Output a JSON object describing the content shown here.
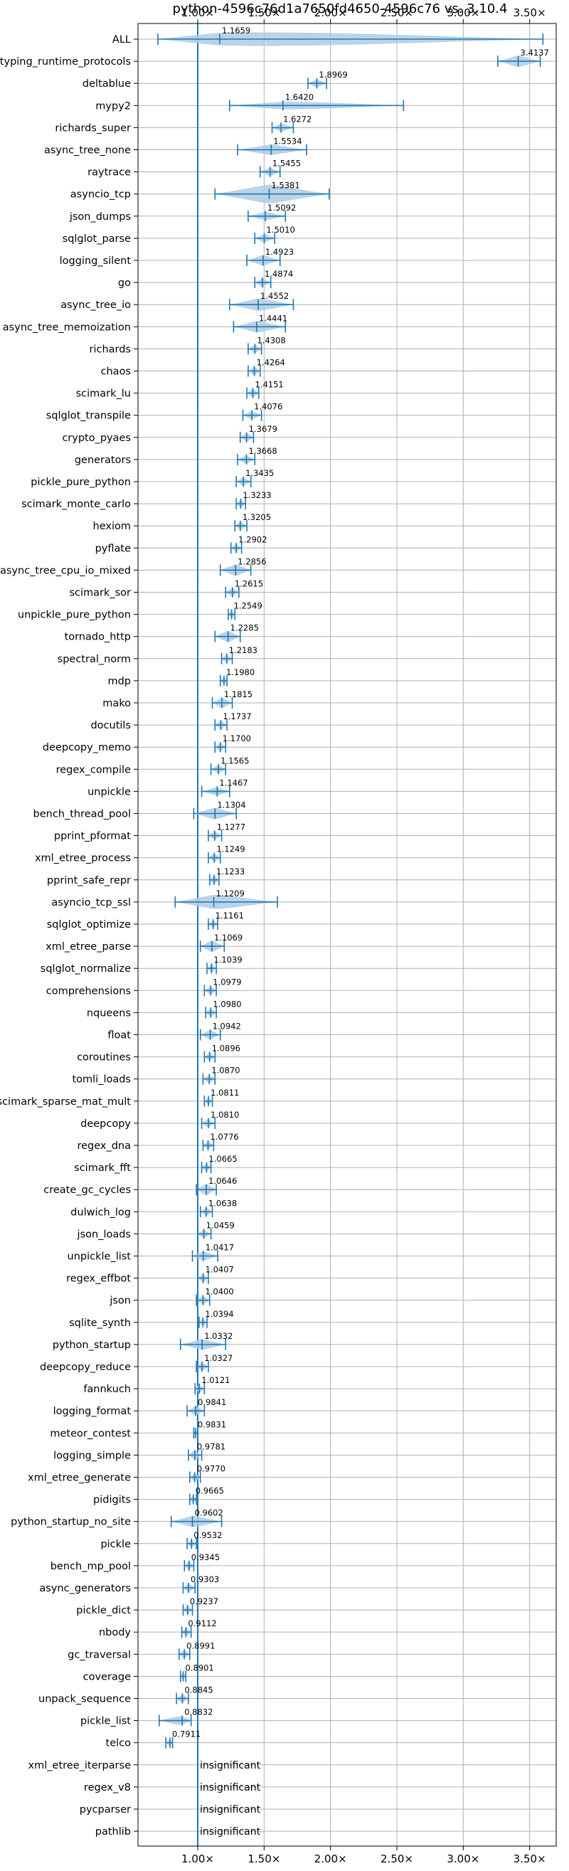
{
  "chart_data": {
    "type": "violin",
    "title": "python-4596c76d1a7650fd4650-4596c76 vs. 3.10.4",
    "xlabel": "",
    "ylabel": "",
    "xlim": [
      0.55,
      3.7
    ],
    "x_ticks": [
      1.0,
      1.5,
      2.0,
      2.5,
      3.0,
      3.5
    ],
    "x_tick_labels": [
      "1.00×",
      "1.50×",
      "2.00×",
      "2.50×",
      "3.00×",
      "3.50×"
    ],
    "x_tick_labels_top": [
      "1.00×",
      "1.50×",
      "2.00×",
      "2.50×",
      "3.00×",
      "3.50×"
    ],
    "reference_line": 1.0,
    "grid": true,
    "colors": {
      "accent": "#1f77b4",
      "violin": "#aecbe4",
      "grid": "#b0b0b0"
    },
    "insignificant_text": "insignificant",
    "categories": [
      "ALL",
      "typing_runtime_protocols",
      "deltablue",
      "mypy2",
      "richards_super",
      "async_tree_none",
      "raytrace",
      "asyncio_tcp",
      "json_dumps",
      "sqlglot_parse",
      "logging_silent",
      "go",
      "async_tree_io",
      "async_tree_memoization",
      "richards",
      "chaos",
      "scimark_lu",
      "sqlglot_transpile",
      "crypto_pyaes",
      "generators",
      "pickle_pure_python",
      "scimark_monte_carlo",
      "hexiom",
      "pyflate",
      "async_tree_cpu_io_mixed",
      "scimark_sor",
      "unpickle_pure_python",
      "tornado_http",
      "spectral_norm",
      "mdp",
      "mako",
      "docutils",
      "deepcopy_memo",
      "regex_compile",
      "unpickle",
      "bench_thread_pool",
      "pprint_pformat",
      "xml_etree_process",
      "pprint_safe_repr",
      "asyncio_tcp_ssl",
      "sqlglot_optimize",
      "xml_etree_parse",
      "sqlglot_normalize",
      "comprehensions",
      "nqueens",
      "float",
      "coroutines",
      "tomli_loads",
      "scimark_sparse_mat_mult",
      "deepcopy",
      "regex_dna",
      "scimark_fft",
      "create_gc_cycles",
      "dulwich_log",
      "json_loads",
      "unpickle_list",
      "regex_effbot",
      "json",
      "sqlite_synth",
      "python_startup",
      "deepcopy_reduce",
      "fannkuch",
      "logging_format",
      "meteor_contest",
      "logging_simple",
      "xml_etree_generate",
      "pidigits",
      "python_startup_no_site",
      "pickle",
      "bench_mp_pool",
      "async_generators",
      "pickle_dict",
      "nbody",
      "gc_traversal",
      "coverage",
      "unpack_sequence",
      "pickle_list",
      "telco",
      "xml_etree_iterparse",
      "regex_v8",
      "pycparser",
      "pathlib"
    ],
    "series": [
      {
        "value": 1.1659,
        "label": "1.1659",
        "min": 0.7,
        "max": 3.6,
        "width": 0.8
      },
      {
        "value": 3.4137,
        "label": "3.4137",
        "min": 3.26,
        "max": 3.58,
        "width": 0.55
      },
      {
        "value": 1.8969,
        "label": "1.8969",
        "min": 1.83,
        "max": 1.97,
        "width": 0.4
      },
      {
        "value": 1.642,
        "label": "1.6420",
        "min": 1.24,
        "max": 2.55,
        "width": 0.4
      },
      {
        "value": 1.6272,
        "label": "1.6272",
        "min": 1.56,
        "max": 1.72,
        "width": 0.4
      },
      {
        "value": 1.5534,
        "label": "1.5534",
        "min": 1.3,
        "max": 1.82,
        "width": 0.5
      },
      {
        "value": 1.5455,
        "label": "1.5455",
        "min": 1.47,
        "max": 1.62,
        "width": 0.4
      },
      {
        "value": 1.5381,
        "label": "1.5381",
        "min": 1.13,
        "max": 1.99,
        "width": 0.9
      },
      {
        "value": 1.5092,
        "label": "1.5092",
        "min": 1.38,
        "max": 1.66,
        "width": 0.4
      },
      {
        "value": 1.501,
        "label": "1.5010",
        "min": 1.43,
        "max": 1.58,
        "width": 0.4
      },
      {
        "value": 1.4923,
        "label": "1.4923",
        "min": 1.37,
        "max": 1.62,
        "width": 0.5
      },
      {
        "value": 1.4874,
        "label": "1.4874",
        "min": 1.43,
        "max": 1.55,
        "width": 0.4
      },
      {
        "value": 1.4552,
        "label": "1.4552",
        "min": 1.24,
        "max": 1.72,
        "width": 0.6
      },
      {
        "value": 1.4441,
        "label": "1.4441",
        "min": 1.27,
        "max": 1.66,
        "width": 0.55
      },
      {
        "value": 1.4308,
        "label": "1.4308",
        "min": 1.38,
        "max": 1.48,
        "width": 0.4
      },
      {
        "value": 1.4264,
        "label": "1.4264",
        "min": 1.38,
        "max": 1.47,
        "width": 0.4
      },
      {
        "value": 1.4151,
        "label": "1.4151",
        "min": 1.37,
        "max": 1.46,
        "width": 0.4
      },
      {
        "value": 1.4076,
        "label": "1.4076",
        "min": 1.34,
        "max": 1.48,
        "width": 0.4
      },
      {
        "value": 1.3679,
        "label": "1.3679",
        "min": 1.32,
        "max": 1.42,
        "width": 0.4
      },
      {
        "value": 1.3668,
        "label": "1.3668",
        "min": 1.3,
        "max": 1.43,
        "width": 0.4
      },
      {
        "value": 1.3435,
        "label": "1.3435",
        "min": 1.29,
        "max": 1.4,
        "width": 0.4
      },
      {
        "value": 1.3233,
        "label": "1.3233",
        "min": 1.29,
        "max": 1.36,
        "width": 0.4
      },
      {
        "value": 1.3205,
        "label": "1.3205",
        "min": 1.28,
        "max": 1.37,
        "width": 0.4
      },
      {
        "value": 1.2902,
        "label": "1.2902",
        "min": 1.25,
        "max": 1.33,
        "width": 0.4
      },
      {
        "value": 1.2856,
        "label": "1.2856",
        "min": 1.17,
        "max": 1.4,
        "width": 0.55
      },
      {
        "value": 1.2615,
        "label": "1.2615",
        "min": 1.21,
        "max": 1.31,
        "width": 0.4
      },
      {
        "value": 1.2549,
        "label": "1.2549",
        "min": 1.23,
        "max": 1.28,
        "width": 0.4
      },
      {
        "value": 1.2285,
        "label": "1.2285",
        "min": 1.13,
        "max": 1.32,
        "width": 0.55
      },
      {
        "value": 1.2183,
        "label": "1.2183",
        "min": 1.18,
        "max": 1.26,
        "width": 0.4
      },
      {
        "value": 1.198,
        "label": "1.1980",
        "min": 1.17,
        "max": 1.22,
        "width": 0.35
      },
      {
        "value": 1.1815,
        "label": "1.1815",
        "min": 1.11,
        "max": 1.26,
        "width": 0.5
      },
      {
        "value": 1.1737,
        "label": "1.1737",
        "min": 1.13,
        "max": 1.22,
        "width": 0.4
      },
      {
        "value": 1.17,
        "label": "1.1700",
        "min": 1.13,
        "max": 1.21,
        "width": 0.4
      },
      {
        "value": 1.1565,
        "label": "1.1565",
        "min": 1.1,
        "max": 1.21,
        "width": 0.4
      },
      {
        "value": 1.1467,
        "label": "1.1467",
        "min": 1.03,
        "max": 1.24,
        "width": 0.4
      },
      {
        "value": 1.1304,
        "label": "1.1304",
        "min": 0.97,
        "max": 1.29,
        "width": 0.55
      },
      {
        "value": 1.1277,
        "label": "1.1277",
        "min": 1.08,
        "max": 1.18,
        "width": 0.4
      },
      {
        "value": 1.1249,
        "label": "1.1249",
        "min": 1.08,
        "max": 1.17,
        "width": 0.4
      },
      {
        "value": 1.1233,
        "label": "1.1233",
        "min": 1.09,
        "max": 1.16,
        "width": 0.4
      },
      {
        "value": 1.1209,
        "label": "1.1209",
        "min": 0.83,
        "max": 1.6,
        "width": 0.7
      },
      {
        "value": 1.1161,
        "label": "1.1161",
        "min": 1.08,
        "max": 1.15,
        "width": 0.4
      },
      {
        "value": 1.1069,
        "label": "1.1069",
        "min": 1.02,
        "max": 1.2,
        "width": 0.55
      },
      {
        "value": 1.1039,
        "label": "1.1039",
        "min": 1.07,
        "max": 1.14,
        "width": 0.4
      },
      {
        "value": 1.0979,
        "label": "1.0979",
        "min": 1.05,
        "max": 1.14,
        "width": 0.4
      },
      {
        "value": 1.098,
        "label": "1.0980",
        "min": 1.06,
        "max": 1.14,
        "width": 0.4
      },
      {
        "value": 1.0942,
        "label": "1.0942",
        "min": 1.02,
        "max": 1.17,
        "width": 0.45
      },
      {
        "value": 1.0896,
        "label": "1.0896",
        "min": 1.05,
        "max": 1.13,
        "width": 0.4
      },
      {
        "value": 1.087,
        "label": "1.0870",
        "min": 1.04,
        "max": 1.13,
        "width": 0.4
      },
      {
        "value": 1.0811,
        "label": "1.0811",
        "min": 1.05,
        "max": 1.11,
        "width": 0.35
      },
      {
        "value": 1.081,
        "label": "1.0810",
        "min": 1.03,
        "max": 1.13,
        "width": 0.4
      },
      {
        "value": 1.0776,
        "label": "1.0776",
        "min": 1.04,
        "max": 1.12,
        "width": 0.4
      },
      {
        "value": 1.0665,
        "label": "1.0665",
        "min": 1.03,
        "max": 1.1,
        "width": 0.4
      },
      {
        "value": 1.0646,
        "label": "1.0646",
        "min": 0.99,
        "max": 1.14,
        "width": 0.55
      },
      {
        "value": 1.0638,
        "label": "1.0638",
        "min": 1.02,
        "max": 1.11,
        "width": 0.4
      },
      {
        "value": 1.0459,
        "label": "1.0459",
        "min": 1.0,
        "max": 1.1,
        "width": 0.4
      },
      {
        "value": 1.0417,
        "label": "1.0417",
        "min": 0.96,
        "max": 1.15,
        "width": 0.45
      },
      {
        "value": 1.0407,
        "label": "1.0407",
        "min": 1.0,
        "max": 1.08,
        "width": 0.4
      },
      {
        "value": 1.04,
        "label": "1.0400",
        "min": 0.99,
        "max": 1.09,
        "width": 0.4
      },
      {
        "value": 1.0394,
        "label": "1.0394",
        "min": 1.01,
        "max": 1.07,
        "width": 0.35
      },
      {
        "value": 1.0332,
        "label": "1.0332",
        "min": 0.87,
        "max": 1.21,
        "width": 0.5
      },
      {
        "value": 1.0327,
        "label": "1.0327",
        "min": 0.99,
        "max": 1.08,
        "width": 0.4
      },
      {
        "value": 1.0121,
        "label": "1.0121",
        "min": 0.98,
        "max": 1.05,
        "width": 0.4
      },
      {
        "value": 0.9841,
        "label": "0.9841",
        "min": 0.92,
        "max": 1.05,
        "width": 0.45
      },
      {
        "value": 0.9831,
        "label": "0.9831",
        "min": 0.97,
        "max": 1.0,
        "width": 0.35
      },
      {
        "value": 0.9781,
        "label": "0.9781",
        "min": 0.93,
        "max": 1.03,
        "width": 0.45
      },
      {
        "value": 0.977,
        "label": "0.9770",
        "min": 0.94,
        "max": 1.02,
        "width": 0.4
      },
      {
        "value": 0.9665,
        "label": "0.9665",
        "min": 0.94,
        "max": 0.99,
        "width": 0.4
      },
      {
        "value": 0.9602,
        "label": "0.9602",
        "min": 0.8,
        "max": 1.18,
        "width": 0.55
      },
      {
        "value": 0.9532,
        "label": "0.9532",
        "min": 0.92,
        "max": 0.99,
        "width": 0.4
      },
      {
        "value": 0.9345,
        "label": "0.9345",
        "min": 0.9,
        "max": 0.97,
        "width": 0.4
      },
      {
        "value": 0.9303,
        "label": "0.9303",
        "min": 0.89,
        "max": 0.98,
        "width": 0.4
      },
      {
        "value": 0.9237,
        "label": "0.9237",
        "min": 0.89,
        "max": 0.96,
        "width": 0.4
      },
      {
        "value": 0.9112,
        "label": "0.9112",
        "min": 0.88,
        "max": 0.95,
        "width": 0.4
      },
      {
        "value": 0.8991,
        "label": "0.8991",
        "min": 0.86,
        "max": 0.94,
        "width": 0.4
      },
      {
        "value": 0.8901,
        "label": "0.8901",
        "min": 0.87,
        "max": 0.91,
        "width": 0.35
      },
      {
        "value": 0.8845,
        "label": "0.8845",
        "min": 0.84,
        "max": 0.93,
        "width": 0.4
      },
      {
        "value": 0.8832,
        "label": "0.8832",
        "min": 0.71,
        "max": 0.95,
        "width": 0.45
      },
      {
        "value": 0.7911,
        "label": "0.7911",
        "min": 0.76,
        "max": 0.81,
        "width": 0.35
      },
      {
        "value": null,
        "label": "insignificant"
      },
      {
        "value": null,
        "label": "insignificant"
      },
      {
        "value": null,
        "label": "insignificant"
      },
      {
        "value": null,
        "label": "insignificant"
      }
    ]
  }
}
